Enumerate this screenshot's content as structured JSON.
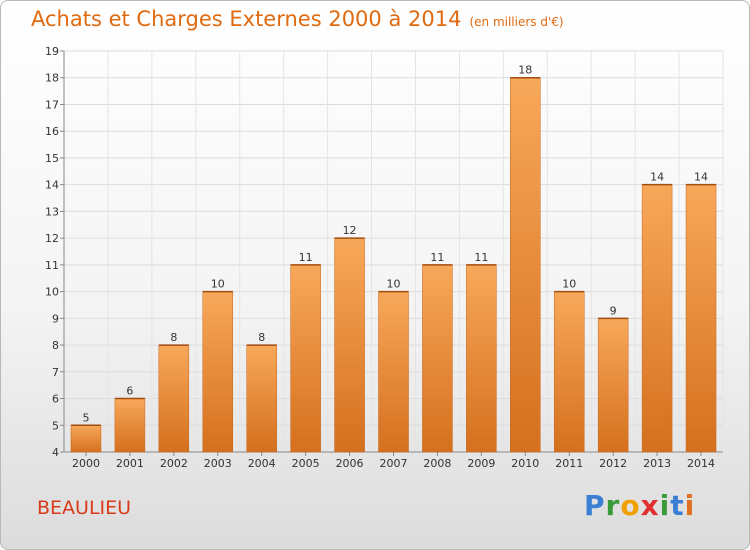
{
  "header": {
    "title": "Achats et Charges Externes 2000 à 2014",
    "subtitle": "(en milliers d'€)"
  },
  "footer": {
    "commune": "BEAULIEU",
    "logo_letters": [
      "P",
      "r",
      "o",
      "x",
      "i",
      "t",
      "i"
    ],
    "logo_colors": [
      "#3a7fd5",
      "#3a9b3a",
      "#f0a000",
      "#e03030",
      "#3a9b3a",
      "#3a7fd5",
      "#e07020"
    ]
  },
  "chart_data": {
    "type": "bar",
    "categories": [
      "2000",
      "2001",
      "2002",
      "2003",
      "2004",
      "2005",
      "2006",
      "2007",
      "2008",
      "2009",
      "2010",
      "2011",
      "2012",
      "2013",
      "2014"
    ],
    "values": [
      5,
      6,
      8,
      10,
      8,
      11,
      12,
      10,
      11,
      11,
      18,
      10,
      9,
      14,
      14
    ],
    "ylim": [
      4,
      19
    ],
    "yticks": [
      "4",
      "5",
      "6",
      "7",
      "8",
      "9",
      "10",
      "11",
      "12",
      "13",
      "14",
      "15",
      "16",
      "17",
      "18",
      "19"
    ],
    "grid": true,
    "bar_color": "#f0913a",
    "bar_color_light": "#f8a85a",
    "bar_color_dark": "#d4701e"
  }
}
